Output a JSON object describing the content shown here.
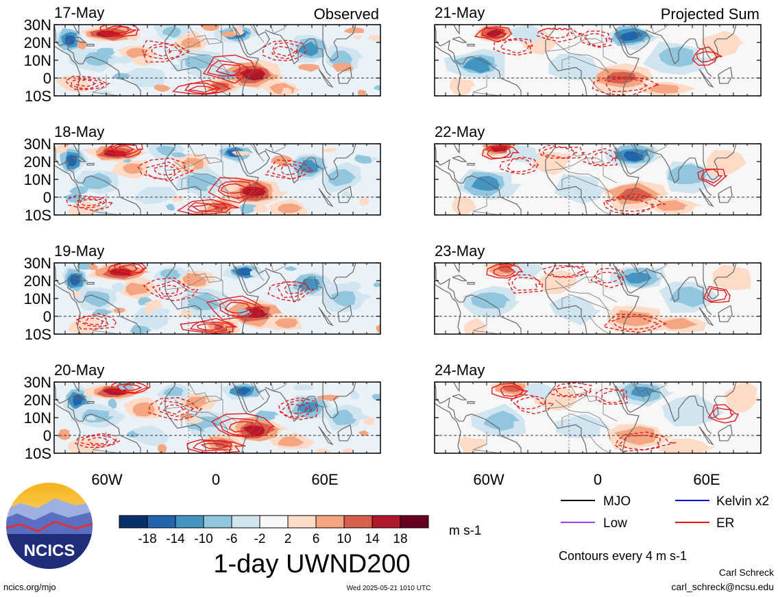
{
  "panels": [
    {
      "date": "17-May",
      "tag": "Observed"
    },
    {
      "date": "18-May",
      "tag": ""
    },
    {
      "date": "19-May",
      "tag": ""
    },
    {
      "date": "20-May",
      "tag": ""
    },
    {
      "date": "21-May",
      "tag": "Projected Sum"
    },
    {
      "date": "22-May",
      "tag": ""
    },
    {
      "date": "23-May",
      "tag": ""
    },
    {
      "date": "24-May",
      "tag": ""
    }
  ],
  "lat_labels": [
    "30N",
    "20N",
    "10N",
    "0",
    "10S"
  ],
  "lon_labels": [
    "60W",
    "0",
    "60E"
  ],
  "colorbar": {
    "colors": [
      "#08306b",
      "#2166ac",
      "#4393c3",
      "#92c5de",
      "#d1e5f0",
      "#f7f7f7",
      "#fddbc7",
      "#f4a582",
      "#d6604d",
      "#b2182b",
      "#67001f"
    ],
    "tick_labels": [
      "-18",
      "-14",
      "-10",
      "-6",
      "-2",
      "2",
      "6",
      "10",
      "14",
      "18"
    ],
    "unit": "m s-1"
  },
  "title": "1-day UWND200",
  "legend": [
    {
      "label": "MJO",
      "color": "#000000"
    },
    {
      "label": "Kelvin x2",
      "color": "#0000dd"
    },
    {
      "label": "Low",
      "color": "#a040ff"
    },
    {
      "label": "ER",
      "color": "#ee1111"
    }
  ],
  "contour_note": "Contours every 4 m s-1",
  "logo_text": "NCICS",
  "footer": {
    "url": "ncics.org/mjo",
    "timestamp": "Wed 2025-05-21 1010 UTC",
    "author": "Carl Schreck",
    "email": "carl_schreck@ncsu.edu"
  }
}
